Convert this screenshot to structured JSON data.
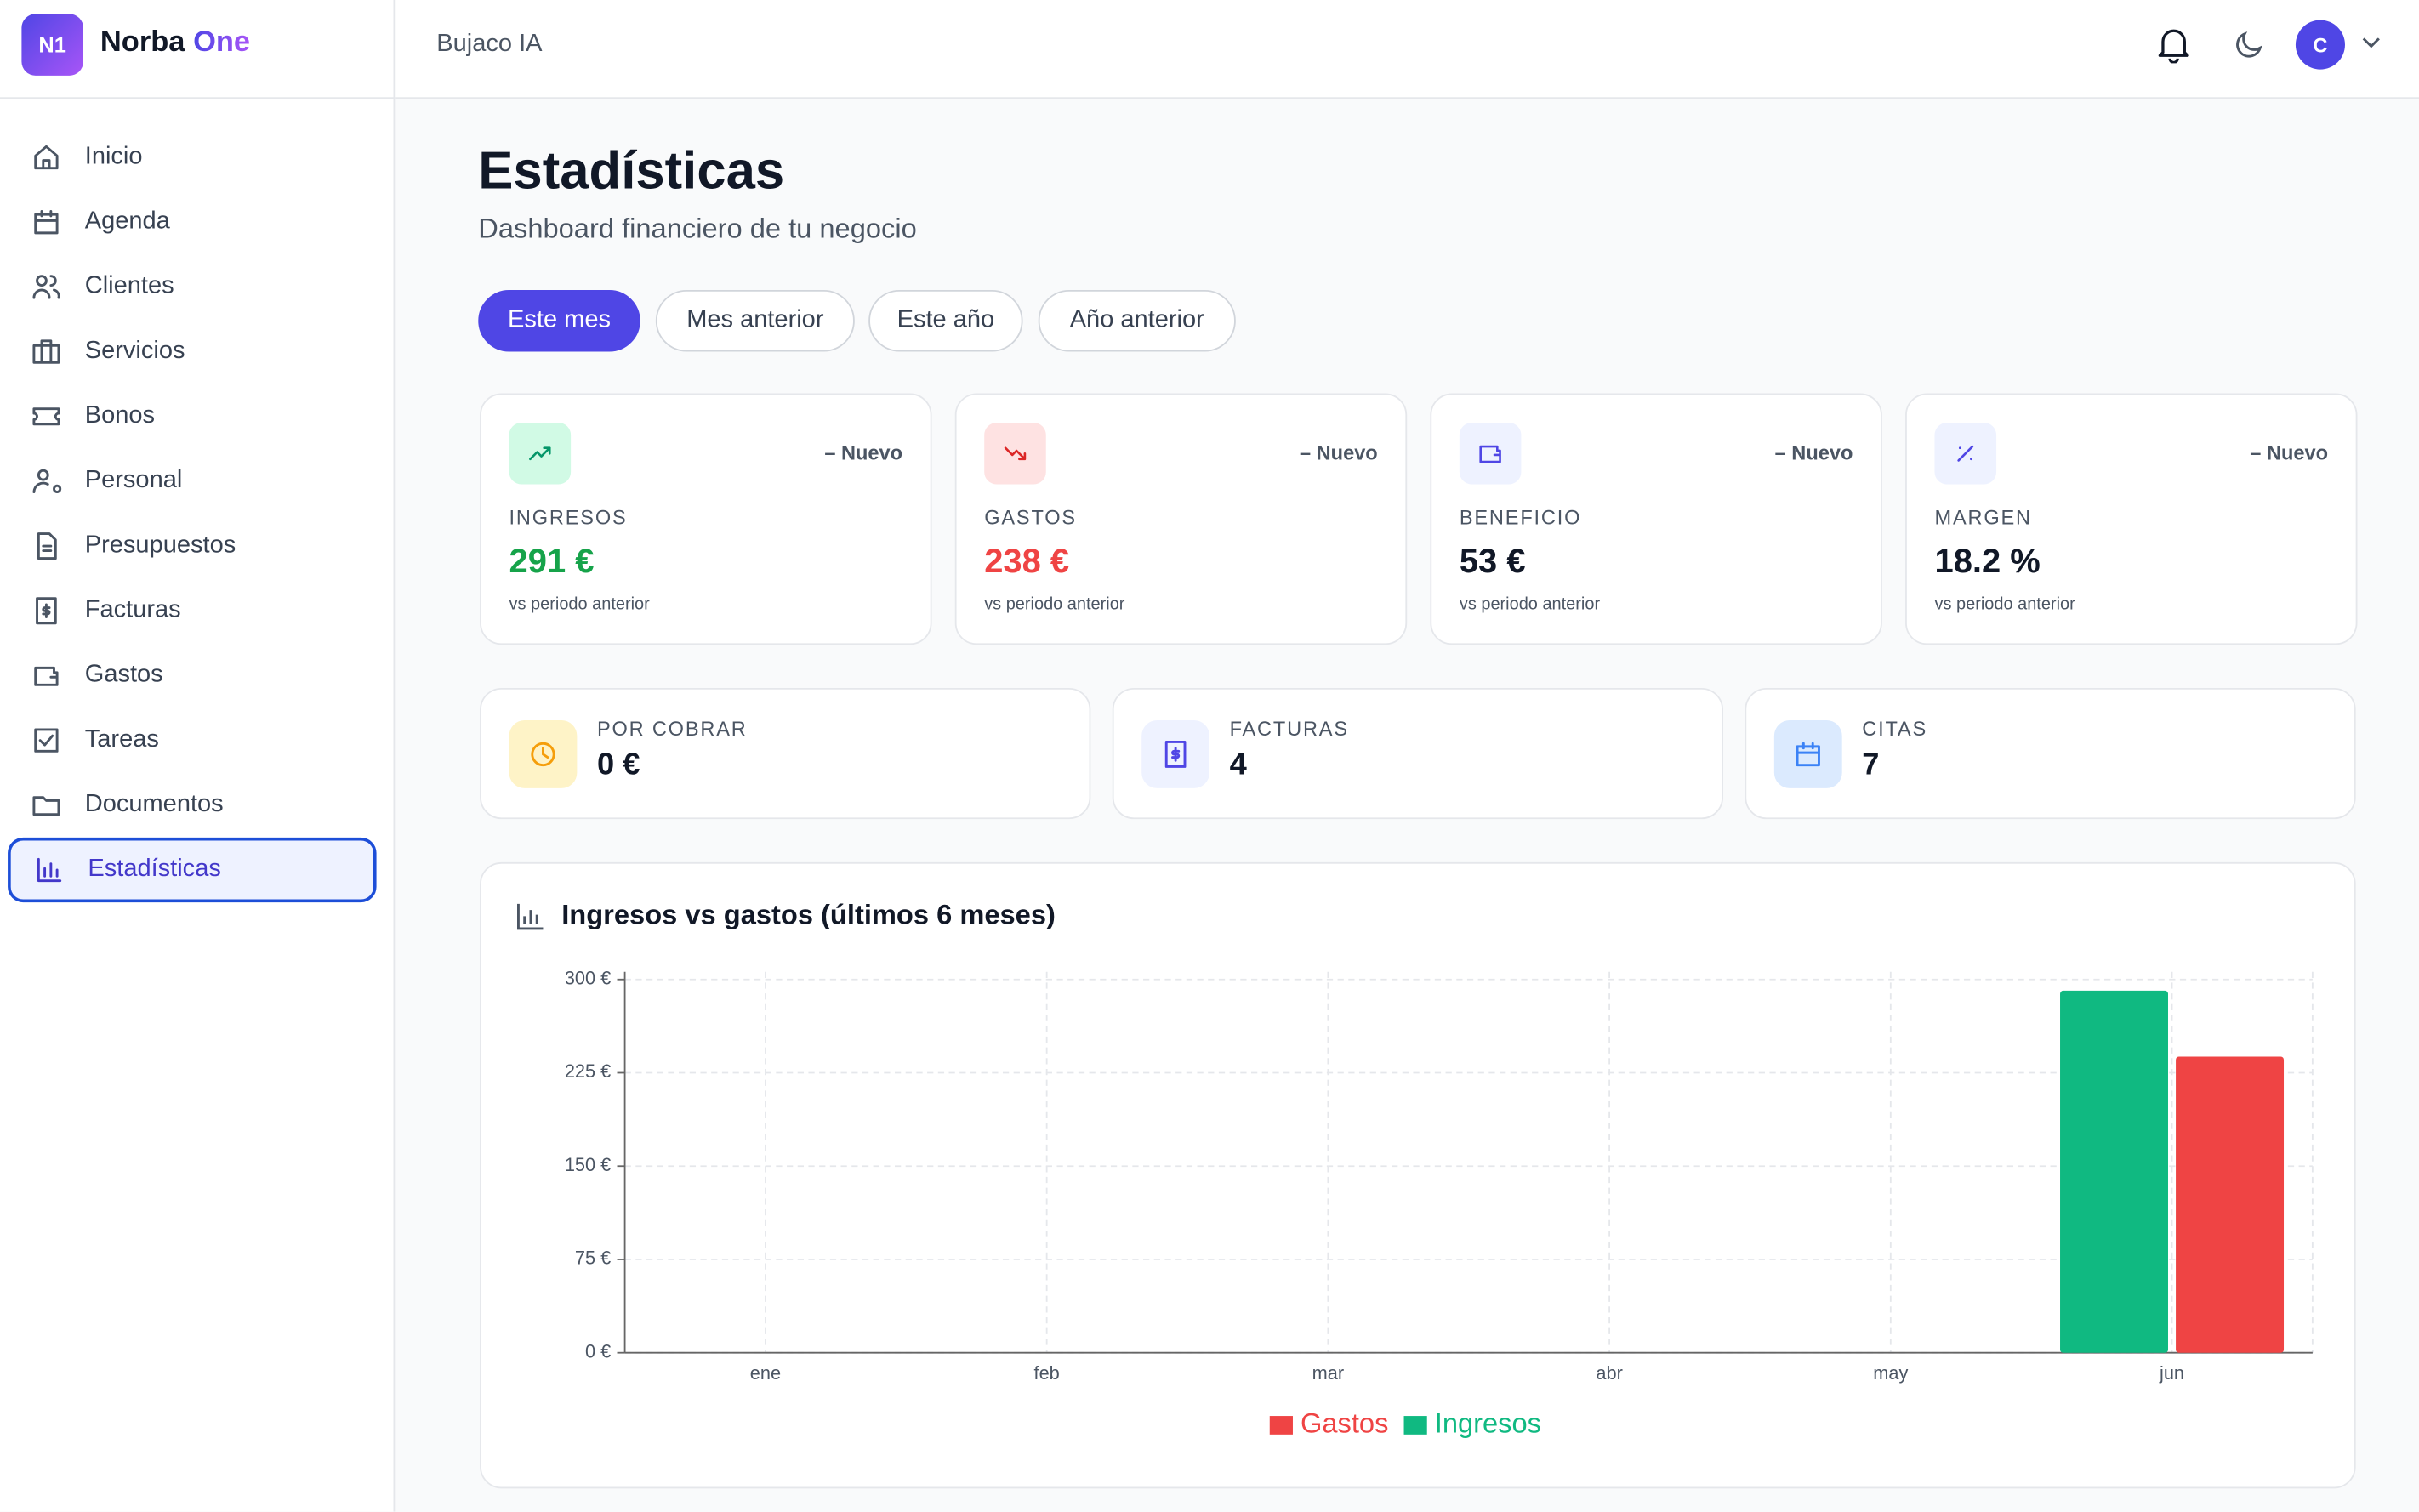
{
  "brand": {
    "logo": "N1",
    "name": "Norba",
    "accent": "One"
  },
  "header": {
    "workspace": "Bujaco IA",
    "avatar": "C"
  },
  "nav": [
    "Inicio",
    "Agenda",
    "Clientes",
    "Servicios",
    "Bonos",
    "Personal",
    "Presupuestos",
    "Facturas",
    "Gastos",
    "Tareas",
    "Documentos",
    "Estadísticas"
  ],
  "page": {
    "title": "Estadísticas",
    "subtitle": "Dashboard financiero de tu negocio"
  },
  "tabs": [
    "Este mes",
    "Mes anterior",
    "Este año",
    "Año anterior"
  ],
  "kpis": [
    {
      "badge": "– Nuevo",
      "label": "INGRESOS",
      "value": "291 €",
      "note": "vs periodo anterior"
    },
    {
      "badge": "– Nuevo",
      "label": "GASTOS",
      "value": "238 €",
      "note": "vs periodo anterior"
    },
    {
      "badge": "– Nuevo",
      "label": "BENEFICIO",
      "value": "53 €",
      "note": "vs periodo anterior"
    },
    {
      "badge": "– Nuevo",
      "label": "MARGEN",
      "value": "18.2 %",
      "note": "vs periodo anterior"
    }
  ],
  "summary": [
    {
      "label": "POR COBRAR",
      "value": "0 €"
    },
    {
      "label": "FACTURAS",
      "value": "4"
    },
    {
      "label": "CITAS",
      "value": "7"
    }
  ],
  "chart_data": {
    "type": "bar",
    "title": "Ingresos vs gastos (últimos 6 meses)",
    "categories": [
      "ene",
      "feb",
      "mar",
      "abr",
      "may",
      "jun"
    ],
    "series": [
      {
        "name": "Ingresos",
        "color": "#10b981",
        "values": [
          0,
          0,
          0,
          0,
          0,
          291
        ]
      },
      {
        "name": "Gastos",
        "color": "#ef4444",
        "values": [
          0,
          0,
          0,
          0,
          0,
          238
        ]
      }
    ],
    "ylim": [
      0,
      300
    ],
    "yticks": [
      {
        "value": 0,
        "label": "0 €"
      },
      {
        "value": 75,
        "label": "75 €"
      },
      {
        "value": 150,
        "label": "150 €"
      },
      {
        "value": 225,
        "label": "225 €"
      },
      {
        "value": 300,
        "label": "300 €"
      }
    ],
    "grid": true
  }
}
